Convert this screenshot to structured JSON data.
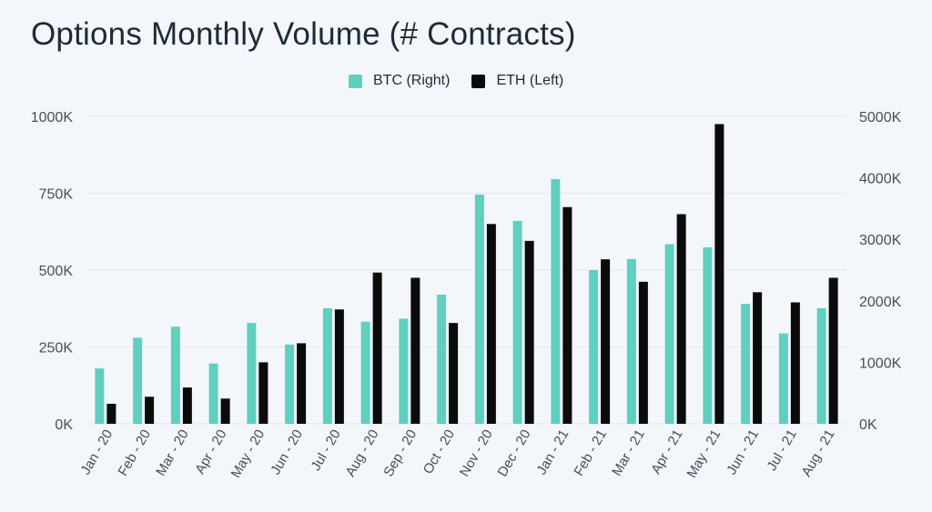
{
  "chart_data": {
    "type": "bar",
    "title": "Options Monthly Volume (# Contracts)",
    "categories": [
      "Jan - 20",
      "Feb - 20",
      "Mar - 20",
      "Apr - 20",
      "May - 20",
      "Jun - 20",
      "Jul - 20",
      "Aug - 20",
      "Sep - 20",
      "Oct - 20",
      "Nov - 20",
      "Dec - 20",
      "Jan - 21",
      "Feb - 21",
      "Mar - 21",
      "Apr - 21",
      "May - 21",
      "Jun - 21",
      "Jul - 21",
      "Aug - 21"
    ],
    "series": [
      {
        "name": "BTC (Right)",
        "axis": "right",
        "color": "#5fcfbf",
        "values": [
          900,
          1400,
          1580,
          980,
          1640,
          1290,
          1880,
          1660,
          1710,
          2100,
          3730,
          3300,
          3980,
          2500,
          2680,
          2920,
          2870,
          1950,
          1470,
          1880
        ]
      },
      {
        "name": "ETH (Left)",
        "axis": "left",
        "color": "#0b0b0b",
        "values": [
          65,
          88,
          118,
          82,
          200,
          262,
          372,
          492,
          475,
          328,
          650,
          595,
          705,
          535,
          462,
          682,
          975,
          428,
          395,
          475
        ]
      }
    ],
    "yleft": {
      "ylim": [
        0,
        1000
      ],
      "ticks": [
        "0K",
        "250K",
        "500K",
        "750K",
        "1000K"
      ],
      "tick_values": [
        0,
        250,
        500,
        750,
        1000
      ]
    },
    "yright": {
      "ylim": [
        0,
        5000
      ],
      "ticks": [
        "0K",
        "1000K",
        "2000K",
        "3000K",
        "4000K",
        "5000K"
      ],
      "tick_values": [
        0,
        1000,
        2000,
        3000,
        4000,
        5000
      ]
    },
    "legend_position": "top-center",
    "grid": true
  }
}
